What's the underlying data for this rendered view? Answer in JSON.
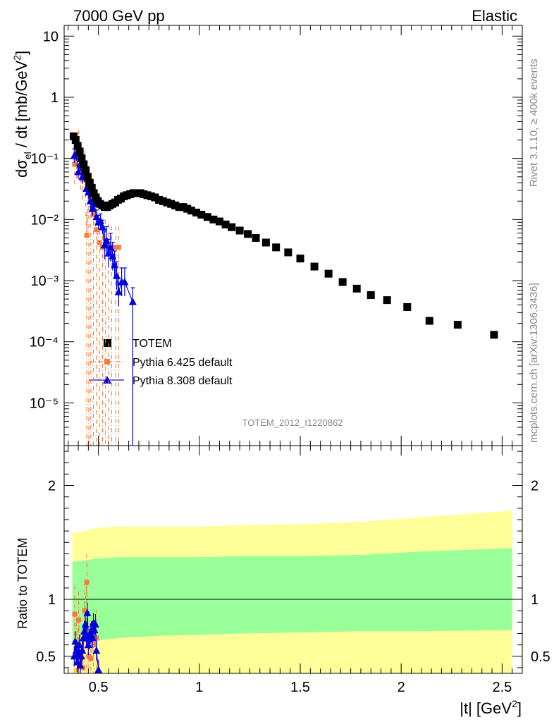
{
  "header": {
    "left": "7000 GeV pp",
    "right": "Elastic"
  },
  "side_labels": {
    "top": "Rivet 3.1.10, ≥ 400k events",
    "bottom": "mcplots.cern.ch [arXiv:1306.3436]"
  },
  "watermark": "TOTEM_2012_I1220862",
  "colors": {
    "data": "#000000",
    "pythia6": "#f47c3c",
    "pythia8": "#0000dd",
    "band_inner": "#99ff99",
    "band_outer": "#ffff99"
  },
  "chart_data": [
    {
      "type": "scatter",
      "panel": "main",
      "title": "",
      "ylabel": "dσel / dt [mb/GeV²]",
      "xlim": [
        0.33,
        2.6
      ],
      "ylim": [
        2e-06,
        15
      ],
      "yscale": "log",
      "y_ticks": [
        "10⁻⁵",
        "10⁻⁴",
        "10⁻³",
        "10⁻²",
        "10⁻¹",
        "1",
        "10"
      ],
      "legend": {
        "placement": "center-left",
        "entries": [
          "TOTEM",
          "Pythia 6.425 default",
          "Pythia 8.308 default"
        ]
      },
      "series": [
        {
          "name": "TOTEM",
          "marker": "square",
          "x": [
            0.377,
            0.387,
            0.397,
            0.407,
            0.417,
            0.427,
            0.437,
            0.447,
            0.457,
            0.467,
            0.477,
            0.487,
            0.497,
            0.508,
            0.519,
            0.531,
            0.543,
            0.556,
            0.569,
            0.583,
            0.597,
            0.611,
            0.626,
            0.641,
            0.657,
            0.673,
            0.69,
            0.707,
            0.724,
            0.742,
            0.761,
            0.78,
            0.8,
            0.82,
            0.84,
            0.86,
            0.88,
            0.9,
            0.92,
            0.94,
            0.96,
            0.985,
            1.01,
            1.04,
            1.07,
            1.1,
            1.13,
            1.16,
            1.2,
            1.24,
            1.28,
            1.33,
            1.38,
            1.44,
            1.5,
            1.57,
            1.64,
            1.71,
            1.78,
            1.85,
            1.93,
            2.03,
            2.14,
            2.28,
            2.46
          ],
          "y": [
            0.23,
            0.2,
            0.16,
            0.13,
            0.1,
            0.08,
            0.064,
            0.05,
            0.04,
            0.033,
            0.027,
            0.023,
            0.02,
            0.018,
            0.017,
            0.016,
            0.016,
            0.017,
            0.018,
            0.019,
            0.021,
            0.022,
            0.024,
            0.025,
            0.026,
            0.027,
            0.027,
            0.027,
            0.026,
            0.025,
            0.024,
            0.023,
            0.021,
            0.02,
            0.019,
            0.018,
            0.017,
            0.016,
            0.016,
            0.015,
            0.014,
            0.013,
            0.012,
            0.011,
            0.01,
            0.0093,
            0.0083,
            0.0075,
            0.0066,
            0.0058,
            0.005,
            0.0042,
            0.0035,
            0.0029,
            0.0023,
            0.0017,
            0.0013,
            0.00095,
            0.00074,
            0.00058,
            0.00048,
            0.00037,
            0.00022,
            0.00019,
            0.00013
          ]
        },
        {
          "name": "Pythia 6.425 default",
          "marker": "square-small",
          "x": [
            0.382,
            0.392,
            0.402,
            0.412,
            0.422,
            0.432,
            0.442,
            0.452,
            0.462,
            0.475,
            0.49,
            0.505,
            0.52,
            0.535,
            0.55,
            0.565,
            0.585,
            0.6
          ],
          "y": [
            0.08,
            0.1,
            0.13,
            0.065,
            0.045,
            0.062,
            0.0055,
            0.03,
            0.022,
            0.012,
            0.0068,
            0.0042,
            0.0035,
            0.0045,
            0.0038,
            0.0035,
            0.0035,
            0.0035
          ]
        },
        {
          "name": "Pythia 8.308 default",
          "marker": "triangle",
          "x": [
            0.38,
            0.39,
            0.4,
            0.41,
            0.42,
            0.43,
            0.44,
            0.45,
            0.46,
            0.47,
            0.48,
            0.49,
            0.5,
            0.51,
            0.52,
            0.53,
            0.54,
            0.55,
            0.56,
            0.57,
            0.58,
            0.59,
            0.6,
            0.615,
            0.63,
            0.67
          ],
          "y": [
            0.11,
            0.12,
            0.06,
            0.08,
            0.05,
            0.055,
            0.032,
            0.028,
            0.02,
            0.015,
            0.018,
            0.011,
            0.009,
            0.0095,
            0.0075,
            0.0038,
            0.0045,
            0.0028,
            0.0035,
            0.0025,
            0.0018,
            0.0012,
            0.00065,
            0.00095,
            0.00095,
            0.00045
          ]
        }
      ]
    },
    {
      "type": "line",
      "panel": "ratio",
      "title": "",
      "xlabel": "|t| [GeV²]",
      "ylabel": "Ratio to TOTEM",
      "xlim": [
        0.33,
        2.6
      ],
      "ylim": [
        0.35,
        2.35
      ],
      "x_ticks": [
        "0.5",
        "1",
        "1.5",
        "2",
        "2.5"
      ],
      "y_ticks": [
        "0.5",
        "1",
        "2"
      ],
      "bands": {
        "x": [
          0.37,
          0.43,
          0.5,
          0.6,
          0.8,
          1.0,
          1.2,
          1.5,
          1.8,
          2.1,
          2.55
        ],
        "inner_low": [
          0.6,
          0.62,
          0.64,
          0.66,
          0.68,
          0.69,
          0.7,
          0.71,
          0.72,
          0.72,
          0.73
        ],
        "inner_high": [
          1.33,
          1.34,
          1.36,
          1.37,
          1.37,
          1.37,
          1.38,
          1.38,
          1.39,
          1.42,
          1.45
        ],
        "outer_low": [
          0.35,
          0.35,
          0.35,
          0.35,
          0.35,
          0.35,
          0.35,
          0.35,
          0.35,
          0.35,
          0.35
        ],
        "outer_high": [
          1.58,
          1.6,
          1.63,
          1.64,
          1.64,
          1.64,
          1.65,
          1.66,
          1.68,
          1.72,
          1.78
        ]
      },
      "series": [
        {
          "name": "Pythia 6.425 default",
          "x": [
            0.382,
            0.392,
            0.402,
            0.412,
            0.422,
            0.432,
            0.442,
            0.452,
            0.462,
            0.475,
            0.49
          ],
          "y": [
            0.87,
            0.55,
            0.82,
            0.45,
            0.4,
            0.9,
            1.15,
            0.5,
            0.48,
            0.6,
            0.66
          ]
        },
        {
          "name": "Pythia 8.308 default",
          "x": [
            0.38,
            0.385,
            0.39,
            0.395,
            0.4,
            0.405,
            0.41,
            0.415,
            0.42,
            0.425,
            0.43,
            0.435,
            0.44,
            0.445,
            0.45,
            0.455,
            0.46,
            0.465,
            0.47,
            0.475,
            0.48,
            0.485,
            0.49,
            0.5
          ],
          "y": [
            0.5,
            0.63,
            0.55,
            0.45,
            0.52,
            0.6,
            0.42,
            0.5,
            0.55,
            0.66,
            0.72,
            0.78,
            0.68,
            0.88,
            0.6,
            0.65,
            0.7,
            0.72,
            0.66,
            0.79,
            0.73,
            0.78,
            0.55,
            0.38
          ]
        }
      ]
    }
  ]
}
